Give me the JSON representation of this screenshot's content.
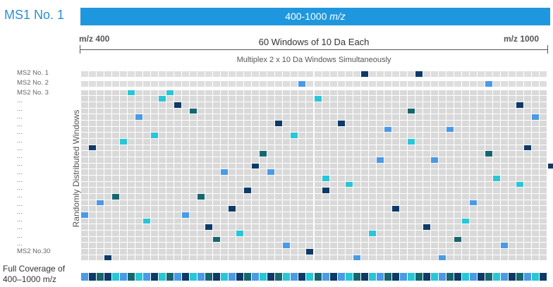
{
  "header": {
    "ms1_label": "MS1 No. 1",
    "range_text": "400-1000 ",
    "range_unit": "m/z"
  },
  "axis": {
    "left_label": "m/z 400",
    "right_label": "m/z 1000",
    "window_count_label": "60 Windows of 10 Da Each",
    "multiplex_label": "Multiplex 2 x 10 Da Windows Simultaneously",
    "y_axis_label": "Randomly Distributed Windows"
  },
  "rows": {
    "labels": [
      "MS2 No. 1",
      "MS2 No. 2",
      "MS2 No. 3",
      "...",
      "...",
      "...",
      "...",
      "...",
      "...",
      "...",
      "...",
      "...",
      "...",
      "...",
      "...",
      "...",
      "...",
      "...",
      "...",
      "...",
      "...",
      "...",
      "MS2 No.30"
    ]
  },
  "coverage": {
    "label_line1": "Full Coverage of",
    "label_line2": "400–1000 m/z"
  },
  "colors": {
    "grid_bg": "#d6d6d6",
    "grid_line": "#ffffff",
    "palette": [
      "#0d3a66",
      "#17666e",
      "#28c6d6",
      "#4a9ae6",
      "#3aaad6"
    ]
  },
  "grid": {
    "columns": 60,
    "row1_cells": [
      [
        36,
        0
      ],
      [
        43,
        0
      ]
    ],
    "row2_cells": [
      [
        28,
        3
      ],
      [
        52,
        3
      ]
    ],
    "body_cells": [
      [
        6,
        0,
        2
      ],
      [
        11,
        0,
        2
      ],
      [
        10,
        1,
        2
      ],
      [
        30,
        1,
        2
      ],
      [
        12,
        2,
        0
      ],
      [
        56,
        2,
        0
      ],
      [
        14,
        3,
        1
      ],
      [
        42,
        3,
        1
      ],
      [
        7,
        4,
        3
      ],
      [
        58,
        4,
        3
      ],
      [
        25,
        5,
        0
      ],
      [
        33,
        5,
        0
      ],
      [
        39,
        6,
        3
      ],
      [
        47,
        6,
        3
      ],
      [
        9,
        7,
        2
      ],
      [
        27,
        7,
        2
      ],
      [
        5,
        8,
        2
      ],
      [
        42,
        8,
        2
      ],
      [
        1,
        9,
        0
      ],
      [
        57,
        9,
        0
      ],
      [
        23,
        10,
        1
      ],
      [
        52,
        10,
        1
      ],
      [
        38,
        11,
        3
      ],
      [
        45,
        11,
        3
      ],
      [
        22,
        12,
        0
      ],
      [
        60,
        12,
        0
      ],
      [
        18,
        13,
        3
      ],
      [
        24,
        13,
        3
      ],
      [
        31,
        14,
        2
      ],
      [
        53,
        14,
        2
      ],
      [
        34,
        15,
        2
      ],
      [
        56,
        15,
        2
      ],
      [
        21,
        16,
        0
      ],
      [
        31,
        16,
        0
      ],
      [
        4,
        17,
        1
      ],
      [
        15,
        17,
        1
      ],
      [
        2,
        18,
        3
      ],
      [
        50,
        18,
        3
      ],
      [
        19,
        19,
        0
      ],
      [
        40,
        19,
        0
      ],
      [
        0,
        20,
        3
      ],
      [
        13,
        20,
        3
      ],
      [
        8,
        21,
        2
      ],
      [
        49,
        21,
        2
      ],
      [
        16,
        22,
        0
      ],
      [
        44,
        22,
        0
      ],
      [
        20,
        23,
        2
      ],
      [
        37,
        23,
        2
      ],
      [
        17,
        24,
        1
      ],
      [
        48,
        24,
        1
      ],
      [
        26,
        25,
        3
      ],
      [
        54,
        25,
        3
      ],
      [
        29,
        26,
        0
      ],
      [
        3,
        27,
        0
      ],
      [
        35,
        27,
        3
      ],
      [
        46,
        27,
        3
      ]
    ],
    "coverage_pattern": [
      3,
      0,
      1,
      0,
      2,
      3,
      1,
      2,
      3,
      0,
      2,
      1,
      3,
      0,
      2,
      3,
      1,
      0,
      2,
      3,
      0,
      1,
      3,
      2,
      0,
      1,
      2,
      3,
      0,
      2,
      1,
      3,
      0,
      3,
      2,
      1,
      0,
      2,
      3,
      1,
      0,
      3,
      2,
      1,
      0,
      2,
      3,
      1,
      0,
      2,
      3,
      0,
      1,
      2,
      3,
      0,
      1,
      3,
      2,
      0
    ]
  }
}
